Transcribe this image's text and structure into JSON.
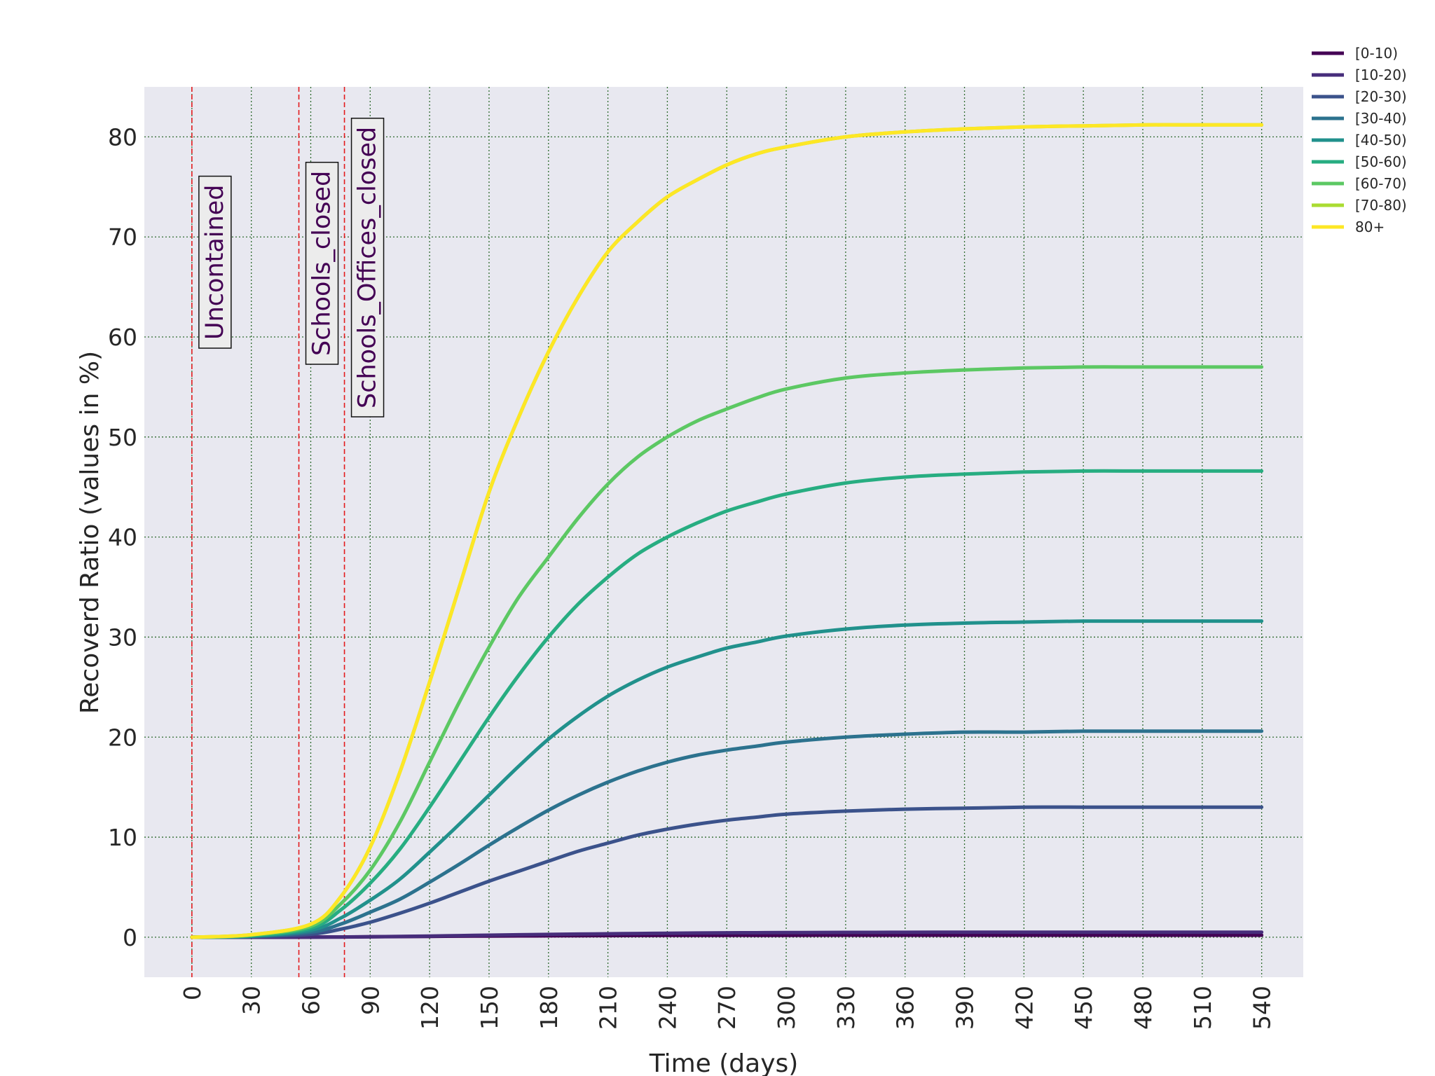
{
  "chart_data": {
    "type": "line",
    "title": "",
    "xlabel": "Time (days)",
    "ylabel": "Recoverd Ratio (values in %)",
    "xlim": [
      -24,
      561
    ],
    "ylim": [
      -4,
      85
    ],
    "xticks": [
      "0",
      "30",
      "60",
      "90",
      "120",
      "150",
      "180",
      "210",
      "240",
      "270",
      "300",
      "330",
      "360",
      "390",
      "420",
      "450",
      "480",
      "510",
      "540"
    ],
    "yticks": [
      "0",
      "10",
      "20",
      "30",
      "40",
      "50",
      "60",
      "70",
      "80"
    ],
    "grid": true,
    "legend_position": "top-right, outside plot",
    "x": [
      0,
      30,
      60,
      75,
      90,
      105,
      120,
      135,
      150,
      165,
      180,
      195,
      210,
      225,
      240,
      255,
      270,
      285,
      300,
      330,
      360,
      390,
      420,
      450,
      480,
      510,
      540
    ],
    "series": [
      {
        "name": "[0-10)",
        "color": "#440154",
        "values": [
          0,
          0,
          0.01,
          0.02,
          0.04,
          0.06,
          0.08,
          0.1,
          0.12,
          0.13,
          0.14,
          0.15,
          0.16,
          0.17,
          0.18,
          0.18,
          0.19,
          0.19,
          0.19,
          0.2,
          0.2,
          0.2,
          0.2,
          0.2,
          0.2,
          0.2,
          0.2
        ]
      },
      {
        "name": "[10-20)",
        "color": "#472d7b",
        "values": [
          0,
          0,
          0.01,
          0.02,
          0.05,
          0.08,
          0.12,
          0.16,
          0.2,
          0.24,
          0.28,
          0.31,
          0.34,
          0.37,
          0.4,
          0.42,
          0.44,
          0.45,
          0.46,
          0.48,
          0.49,
          0.5,
          0.5,
          0.5,
          0.5,
          0.5,
          0.5
        ]
      },
      {
        "name": "[20-30)",
        "color": "#3b528b",
        "values": [
          0,
          0.05,
          0.3,
          0.8,
          1.5,
          2.4,
          3.4,
          4.5,
          5.6,
          6.6,
          7.6,
          8.6,
          9.4,
          10.2,
          10.8,
          11.3,
          11.7,
          12.0,
          12.3,
          12.6,
          12.8,
          12.9,
          13.0,
          13.0,
          13.0,
          13.0,
          13.0
        ]
      },
      {
        "name": "[30-40)",
        "color": "#2c728e",
        "values": [
          0,
          0.08,
          0.5,
          1.3,
          2.5,
          3.8,
          5.5,
          7.3,
          9.2,
          11.0,
          12.7,
          14.2,
          15.5,
          16.6,
          17.5,
          18.2,
          18.7,
          19.1,
          19.5,
          20.0,
          20.3,
          20.5,
          20.5,
          20.6,
          20.6,
          20.6,
          20.6
        ]
      },
      {
        "name": "[40-50)",
        "color": "#21918c",
        "values": [
          0,
          0.1,
          0.7,
          1.9,
          3.7,
          5.8,
          8.5,
          11.3,
          14.2,
          17.1,
          19.8,
          22.1,
          24.1,
          25.7,
          27.0,
          28.0,
          28.9,
          29.5,
          30.1,
          30.8,
          31.2,
          31.4,
          31.5,
          31.6,
          31.6,
          31.6,
          31.6
        ]
      },
      {
        "name": "[50-60)",
        "color": "#27ad81",
        "values": [
          0,
          0.15,
          0.9,
          2.7,
          5.4,
          8.8,
          13.0,
          17.5,
          22.0,
          26.2,
          30.0,
          33.3,
          36.0,
          38.3,
          40.0,
          41.4,
          42.6,
          43.5,
          44.3,
          45.4,
          46.0,
          46.3,
          46.5,
          46.6,
          46.6,
          46.6,
          46.6
        ]
      },
      {
        "name": "[60-70)",
        "color": "#5cc863",
        "values": [
          0,
          0.2,
          1.1,
          3.3,
          6.7,
          11.5,
          17.5,
          23.5,
          29.0,
          34.0,
          38.0,
          41.9,
          45.3,
          48.0,
          50.0,
          51.6,
          52.8,
          53.9,
          54.8,
          55.9,
          56.4,
          56.7,
          56.9,
          57.0,
          57.0,
          57.0,
          57.0
        ]
      },
      {
        "name": "[70-80)",
        "color": "#aadc32",
        "values": [
          0,
          0.25,
          1.3,
          4.0,
          9.0,
          16.5,
          25.5,
          35.0,
          44.5,
          52.0,
          58.5,
          64.0,
          68.5,
          71.5,
          74.0,
          75.7,
          77.2,
          78.3,
          79.0,
          80.0,
          80.5,
          80.8,
          81.0,
          81.1,
          81.2,
          81.2,
          81.2
        ]
      },
      {
        "name": "80+",
        "color": "#fde725",
        "values": [
          0,
          0.25,
          1.3,
          4.0,
          9.0,
          16.5,
          25.5,
          35.0,
          44.5,
          52.0,
          58.5,
          64.0,
          68.5,
          71.5,
          74.0,
          75.7,
          77.2,
          78.3,
          79.0,
          80.0,
          80.5,
          80.8,
          81.0,
          81.1,
          81.2,
          81.2,
          81.2
        ]
      }
    ],
    "annotations": [
      {
        "x": 0,
        "text": "Uncontained"
      },
      {
        "x": 54,
        "text": "Schools_closed"
      },
      {
        "x": 77,
        "text": "Schools_Offices_closed"
      }
    ]
  },
  "colors": {
    "plot_background": "#e8e8f0",
    "grid": "#2f6b2f",
    "vline": "#e31a1c",
    "annotation_text": "#440154"
  }
}
